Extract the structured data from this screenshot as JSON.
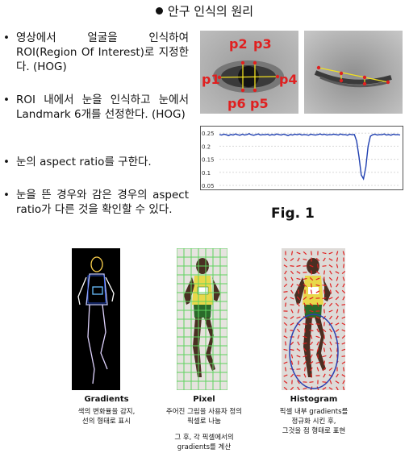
{
  "title": "안구 인식의 원리",
  "bullets": [
    {
      "marker": "•",
      "text": "영상에서 얼굴을 인식하여 ROI(Region Of Interest)로 지정한다. (HOG)"
    },
    {
      "marker": "•",
      "text": "ROI 내에서 눈을 인식하고 눈에서 Landmark 6개를 선정한다. (HOG)"
    },
    {
      "marker": "•",
      "text": "눈의 aspect ratio를 구한다."
    },
    {
      "marker": "•",
      "text": "눈을 뜬 경우와 감은 경우의 aspect ratio가 다른 것을 확인할 수 있다."
    }
  ],
  "landmarks": [
    "p1",
    "p2",
    "p3",
    "p4",
    "p5",
    "p6"
  ],
  "fig_label": "Fig. 1",
  "chart_data": {
    "type": "line",
    "yticks": [
      "0.25",
      "0.2",
      "0.15",
      "0.1",
      "0.05"
    ],
    "ylim": [
      0.05,
      0.26
    ],
    "grid": true,
    "series": [
      {
        "color": "#1f3fb0",
        "values": [
          0.245,
          0.243,
          0.246,
          0.244,
          0.241,
          0.245,
          0.243,
          0.247,
          0.244,
          0.242,
          0.246,
          0.243,
          0.245,
          0.248,
          0.244,
          0.242,
          0.245,
          0.247,
          0.243,
          0.245,
          0.244,
          0.246,
          0.242,
          0.245,
          0.243,
          0.247,
          0.245,
          0.243,
          0.246,
          0.244,
          0.241,
          0.245,
          0.243,
          0.246,
          0.244,
          0.247,
          0.243,
          0.245,
          0.244,
          0.242,
          0.246,
          0.244,
          0.243,
          0.245,
          0.247,
          0.244,
          0.246,
          0.243,
          0.245,
          0.244,
          0.246,
          0.245,
          0.243,
          0.247,
          0.244,
          0.245,
          0.242,
          0.246,
          0.244,
          0.245,
          0.22,
          0.16,
          0.09,
          0.075,
          0.12,
          0.2,
          0.238,
          0.244,
          0.246,
          0.243,
          0.245,
          0.244,
          0.247,
          0.243,
          0.245,
          0.242,
          0.246,
          0.244,
          0.245,
          0.243
        ]
      }
    ]
  },
  "panels": [
    {
      "heading": "Gradients",
      "lines": [
        "색의 변화율을 감지,",
        "선의 형태로 표시"
      ],
      "extra": []
    },
    {
      "heading": "Pixel",
      "lines": [
        "주어진 그림을 사용자 정의",
        "픽셀로 나눔"
      ],
      "extra": [
        "그 후, 각 픽셀에서의",
        "gradients를 계산"
      ]
    },
    {
      "heading": "Histogram",
      "lines": [
        "픽셀 내부 gradients를",
        "정규화 시킨 후,",
        "그것을 점 형태로 표현"
      ],
      "extra": []
    }
  ],
  "colors": {
    "landmark": "#e02020",
    "axis_line": "#f2e020",
    "plot": "#1f3fb0",
    "grid_green": "#5fd35f",
    "ellipse": "#2a3fb0"
  }
}
